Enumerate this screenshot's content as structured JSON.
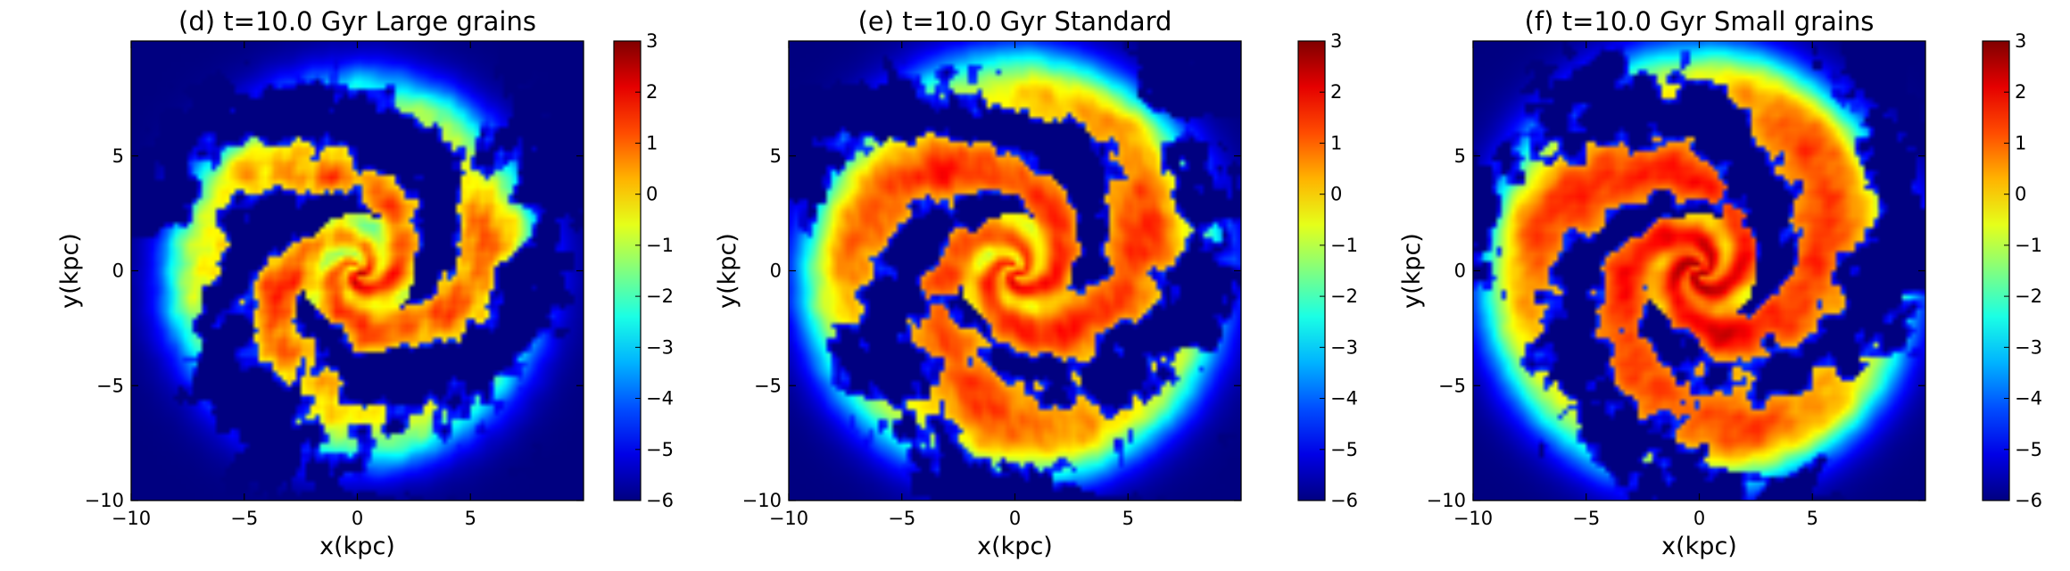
{
  "chart_data": [
    {
      "type": "heatmap",
      "title": "(d) t=10.0 Gyr  Large grains",
      "xlabel": "x(kpc)",
      "ylabel": "y(kpc)",
      "xlim": [
        -10,
        10
      ],
      "ylim": [
        -10,
        10
      ],
      "xticks": [
        -10,
        -5,
        0,
        5
      ],
      "yticks": [
        -10,
        -5,
        0,
        5
      ],
      "colorbar": {
        "min": -6,
        "max": 3,
        "ticks": [
          3,
          2,
          1,
          0,
          -1,
          -2,
          -3,
          -4,
          -5,
          -6
        ],
        "colormap": "jet"
      },
      "pattern": {
        "arms": 3,
        "twist": 2.4,
        "disk_radius_kpc": 8.2,
        "level": -0.6,
        "clumpiness": 2.6,
        "void_threshold": 0.15,
        "seed": 11
      }
    },
    {
      "type": "heatmap",
      "title": "(e) t=10.0 Gyr  Standard",
      "xlabel": "x(kpc)",
      "ylabel": "y(kpc)",
      "xlim": [
        -10,
        10
      ],
      "ylim": [
        -10,
        10
      ],
      "xticks": [
        -10,
        -5,
        0,
        5
      ],
      "yticks": [
        -10,
        -5,
        0,
        5
      ],
      "colorbar": {
        "min": -6,
        "max": 3,
        "ticks": [
          3,
          2,
          1,
          0,
          -1,
          -2,
          -3,
          -4,
          -5,
          -6
        ],
        "colormap": "jet"
      },
      "pattern": {
        "arms": 3,
        "twist": 2.4,
        "disk_radius_kpc": 9.2,
        "level": 0.0,
        "clumpiness": 1.6,
        "void_threshold": 0.08,
        "seed": 23
      }
    },
    {
      "type": "heatmap",
      "title": "(f) t=10.0 Gyr  Small grains",
      "xlabel": "x(kpc)",
      "ylabel": "y(kpc)",
      "xlim": [
        -10,
        10
      ],
      "ylim": [
        -10,
        10
      ],
      "xticks": [
        -10,
        -5,
        0,
        5
      ],
      "yticks": [
        -10,
        -5,
        0,
        5
      ],
      "colorbar": {
        "min": -6,
        "max": 3,
        "ticks": [
          3,
          2,
          1,
          0,
          -1,
          -2,
          -3,
          -4,
          -5,
          -6
        ],
        "colormap": "jet"
      },
      "pattern": {
        "arms": 3,
        "twist": 2.4,
        "disk_radius_kpc": 9.4,
        "level": 0.3,
        "clumpiness": 1.4,
        "void_threshold": 0.06,
        "seed": 37
      }
    }
  ]
}
